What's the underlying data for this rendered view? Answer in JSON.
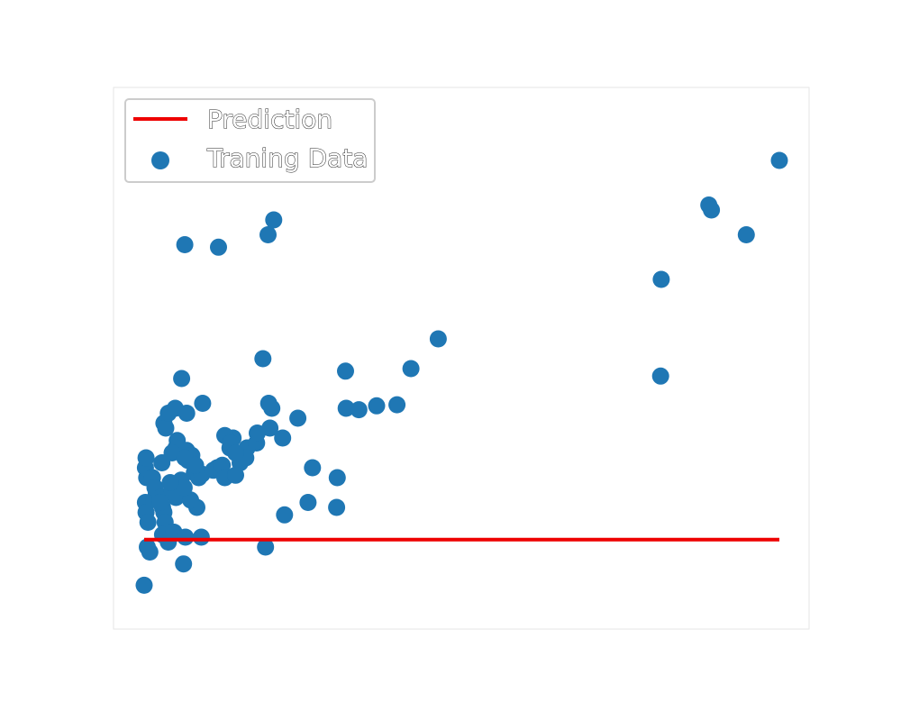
{
  "chart_data": {
    "type": "scatter",
    "title": "",
    "xlabel": "",
    "ylabel": "",
    "xlim": [
      0,
      100
    ],
    "ylim": [
      0,
      100
    ],
    "grid": false,
    "legend": {
      "location": "upper-left",
      "entries": [
        {
          "label": "Prediction",
          "kind": "line",
          "color": "#ee0000"
        },
        {
          "label": "Traning Data",
          "kind": "marker",
          "color": "#1f77b4"
        }
      ]
    },
    "series": [
      {
        "name": "Prediction",
        "type": "line",
        "color": "#ee0000",
        "x": [
          0,
          100
        ],
        "y": [
          13.5,
          13.5
        ]
      },
      {
        "name": "Traning Data",
        "type": "scatter",
        "color": "#1f77b4",
        "x": [
          0.0,
          0.2,
          0.3,
          0.4,
          0.2,
          0.3,
          0.6,
          0.5,
          0.9,
          1.6,
          1.3,
          1.9,
          1.7,
          2.5,
          2.9,
          3.1,
          3.3,
          4.0,
          4.5,
          4.4,
          5.2,
          6.2,
          5.0,
          2.9,
          3.8,
          4.7,
          5.0,
          5.8,
          6.5,
          6.7,
          6.9,
          7.9,
          7.5,
          8.6,
          9.1,
          10.9,
          11.5,
          12.3,
          12.7,
          13.5,
          14.0,
          15.1,
          16.2,
          17.7,
          19.8,
          19.1,
          2.8,
          3.1,
          3.4,
          3.8,
          5.9,
          4.9,
          4.4,
          8.3,
          6.4,
          9.0,
          14.4,
          16.0,
          17.8,
          20.1,
          21.8,
          24.2,
          25.8,
          26.5,
          30.4,
          30.3,
          22.1,
          36.6,
          39.8,
          31.8,
          31.7,
          33.8,
          42.0,
          46.3,
          81.3,
          81.4,
          88.9,
          89.3,
          94.8,
          100.0,
          6.4,
          11.7,
          19.5,
          20.4,
          18.7,
          19.6,
          9.2,
          6.7,
          12.7,
          13.6,
          14.4,
          8.1,
          7.3,
          6.3,
          4.1,
          2.5
        ],
        "y": [
          4.3,
          21.0,
          19.0,
          26.0,
          28.0,
          30.0,
          17.0,
          12.0,
          11.0,
          21.6,
          26.0,
          23.0,
          24.0,
          22.0,
          20.0,
          19.0,
          17.0,
          14.0,
          15.0,
          23.5,
          33.5,
          8.6,
          32.0,
          14.5,
          13.0,
          15.0,
          22.0,
          25.5,
          14.0,
          31.5,
          29.5,
          27.0,
          30.5,
          26.0,
          26.7,
          27.5,
          28.0,
          28.5,
          26.0,
          32.0,
          34.0,
          29.0,
          32.0,
          33.0,
          36.0,
          12.0,
          29.0,
          37.0,
          36.0,
          39.0,
          46.0,
          40.0,
          31.0,
          20.0,
          30.0,
          14.0,
          26.5,
          30.0,
          35.0,
          40.0,
          34.0,
          38.0,
          21.0,
          28.0,
          26.0,
          20.0,
          18.5,
          40.5,
          40.7,
          40.0,
          47.5,
          39.7,
          48.0,
          54.0,
          46.5,
          66.0,
          81.0,
          80.0,
          75.0,
          90.0,
          73.0,
          72.5,
          75.0,
          78.0,
          50.0,
          41.0,
          41.0,
          39.0,
          34.5,
          33.0,
          31.0,
          28.5,
          21.5,
          24.0,
          25.0,
          21.0
        ]
      }
    ]
  }
}
